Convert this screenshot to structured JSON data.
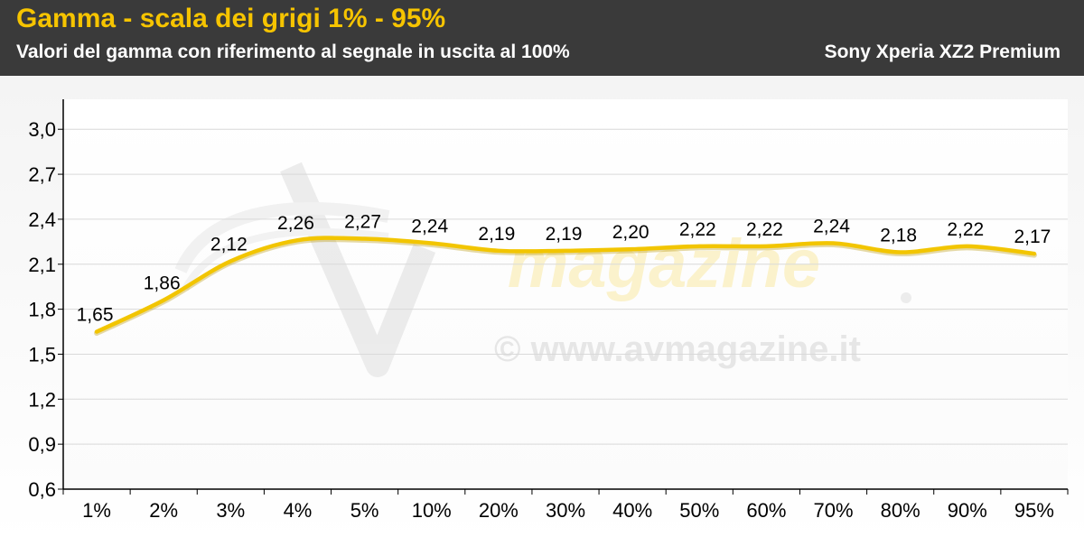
{
  "header": {
    "title": "Gamma - scala dei grigi 1% - 95%",
    "subtitle": "Valori del gamma con riferimento al segnale in uscita al 100%",
    "device": "Sony Xperia XZ2 Premium"
  },
  "watermark": {
    "logo_text": "AV magazine",
    "url_text": "© www.avmagazine.it"
  },
  "colors": {
    "header_bg": "#3a3a3a",
    "title": "#f6c400",
    "line": "#f2c500",
    "grid": "#d9d9d9"
  },
  "chart_data": {
    "type": "line",
    "categories": [
      "1%",
      "2%",
      "3%",
      "4%",
      "5%",
      "10%",
      "20%",
      "30%",
      "40%",
      "50%",
      "60%",
      "70%",
      "80%",
      "90%",
      "95%"
    ],
    "values": [
      1.65,
      1.86,
      2.12,
      2.26,
      2.27,
      2.24,
      2.19,
      2.19,
      2.2,
      2.22,
      2.22,
      2.24,
      2.18,
      2.22,
      2.17
    ],
    "value_labels": [
      "1,65",
      "1,86",
      "2,12",
      "2,26",
      "2,27",
      "2,24",
      "2,19",
      "2,19",
      "2,20",
      "2,22",
      "2,22",
      "2,24",
      "2,18",
      "2,22",
      "2,17"
    ],
    "yticks": [
      "0,6",
      "0,9",
      "1,2",
      "1,5",
      "1,8",
      "2,1",
      "2,4",
      "2,7",
      "3,0"
    ],
    "ytick_values": [
      0.6,
      0.9,
      1.2,
      1.5,
      1.8,
      2.1,
      2.4,
      2.7,
      3.0
    ],
    "ylim": [
      0.6,
      3.2
    ],
    "grid": true,
    "legend": "none",
    "title": "Gamma - scala dei grigi 1% - 95%",
    "subtitle": "Valori del gamma con riferimento al segnale in uscita al 100%"
  }
}
